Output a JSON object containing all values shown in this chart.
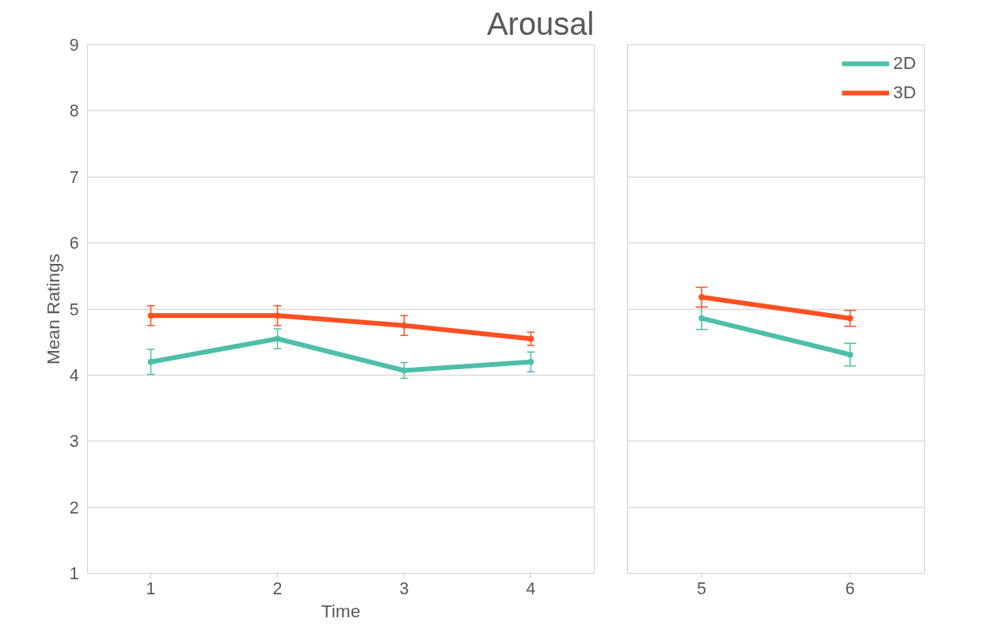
{
  "chart_data": [
    {
      "type": "line",
      "title": "Arousal",
      "xlabel": "Time",
      "ylabel": "Mean Ratings",
      "categories": [
        "1",
        "2",
        "3",
        "4"
      ],
      "ylim": [
        1,
        9
      ],
      "yticks": [
        1,
        2,
        3,
        4,
        5,
        6,
        7,
        8,
        9
      ],
      "grid": "y",
      "marker": "circle",
      "legend": false,
      "series": [
        {
          "color": "#4dbfa8",
          "values": [
            4.2,
            4.55,
            4.07,
            4.2
          ],
          "errors": [
            0.19,
            0.15,
            0.12,
            0.15
          ]
        },
        {
          "color": "#fe5020",
          "values": [
            4.9,
            4.9,
            4.75,
            4.55
          ],
          "errors": [
            0.15,
            0.15,
            0.15,
            0.1
          ]
        }
      ]
    },
    {
      "type": "line",
      "categories": [
        "5",
        "6"
      ],
      "ylim": [
        1,
        9
      ],
      "yticks": [
        1,
        2,
        3,
        4,
        5,
        6,
        7,
        8,
        9
      ],
      "grid": "y",
      "marker": "circle",
      "legend": "top right",
      "tick_labels": "x",
      "series": [
        {
          "name": "2D",
          "color": "#4dbfa8",
          "values": [
            4.86,
            4.31
          ],
          "errors": [
            0.17,
            0.17
          ]
        },
        {
          "name": "3D",
          "color": "#fe5020",
          "values": [
            5.18,
            4.86
          ],
          "errors": [
            0.15,
            0.12
          ]
        }
      ]
    }
  ]
}
